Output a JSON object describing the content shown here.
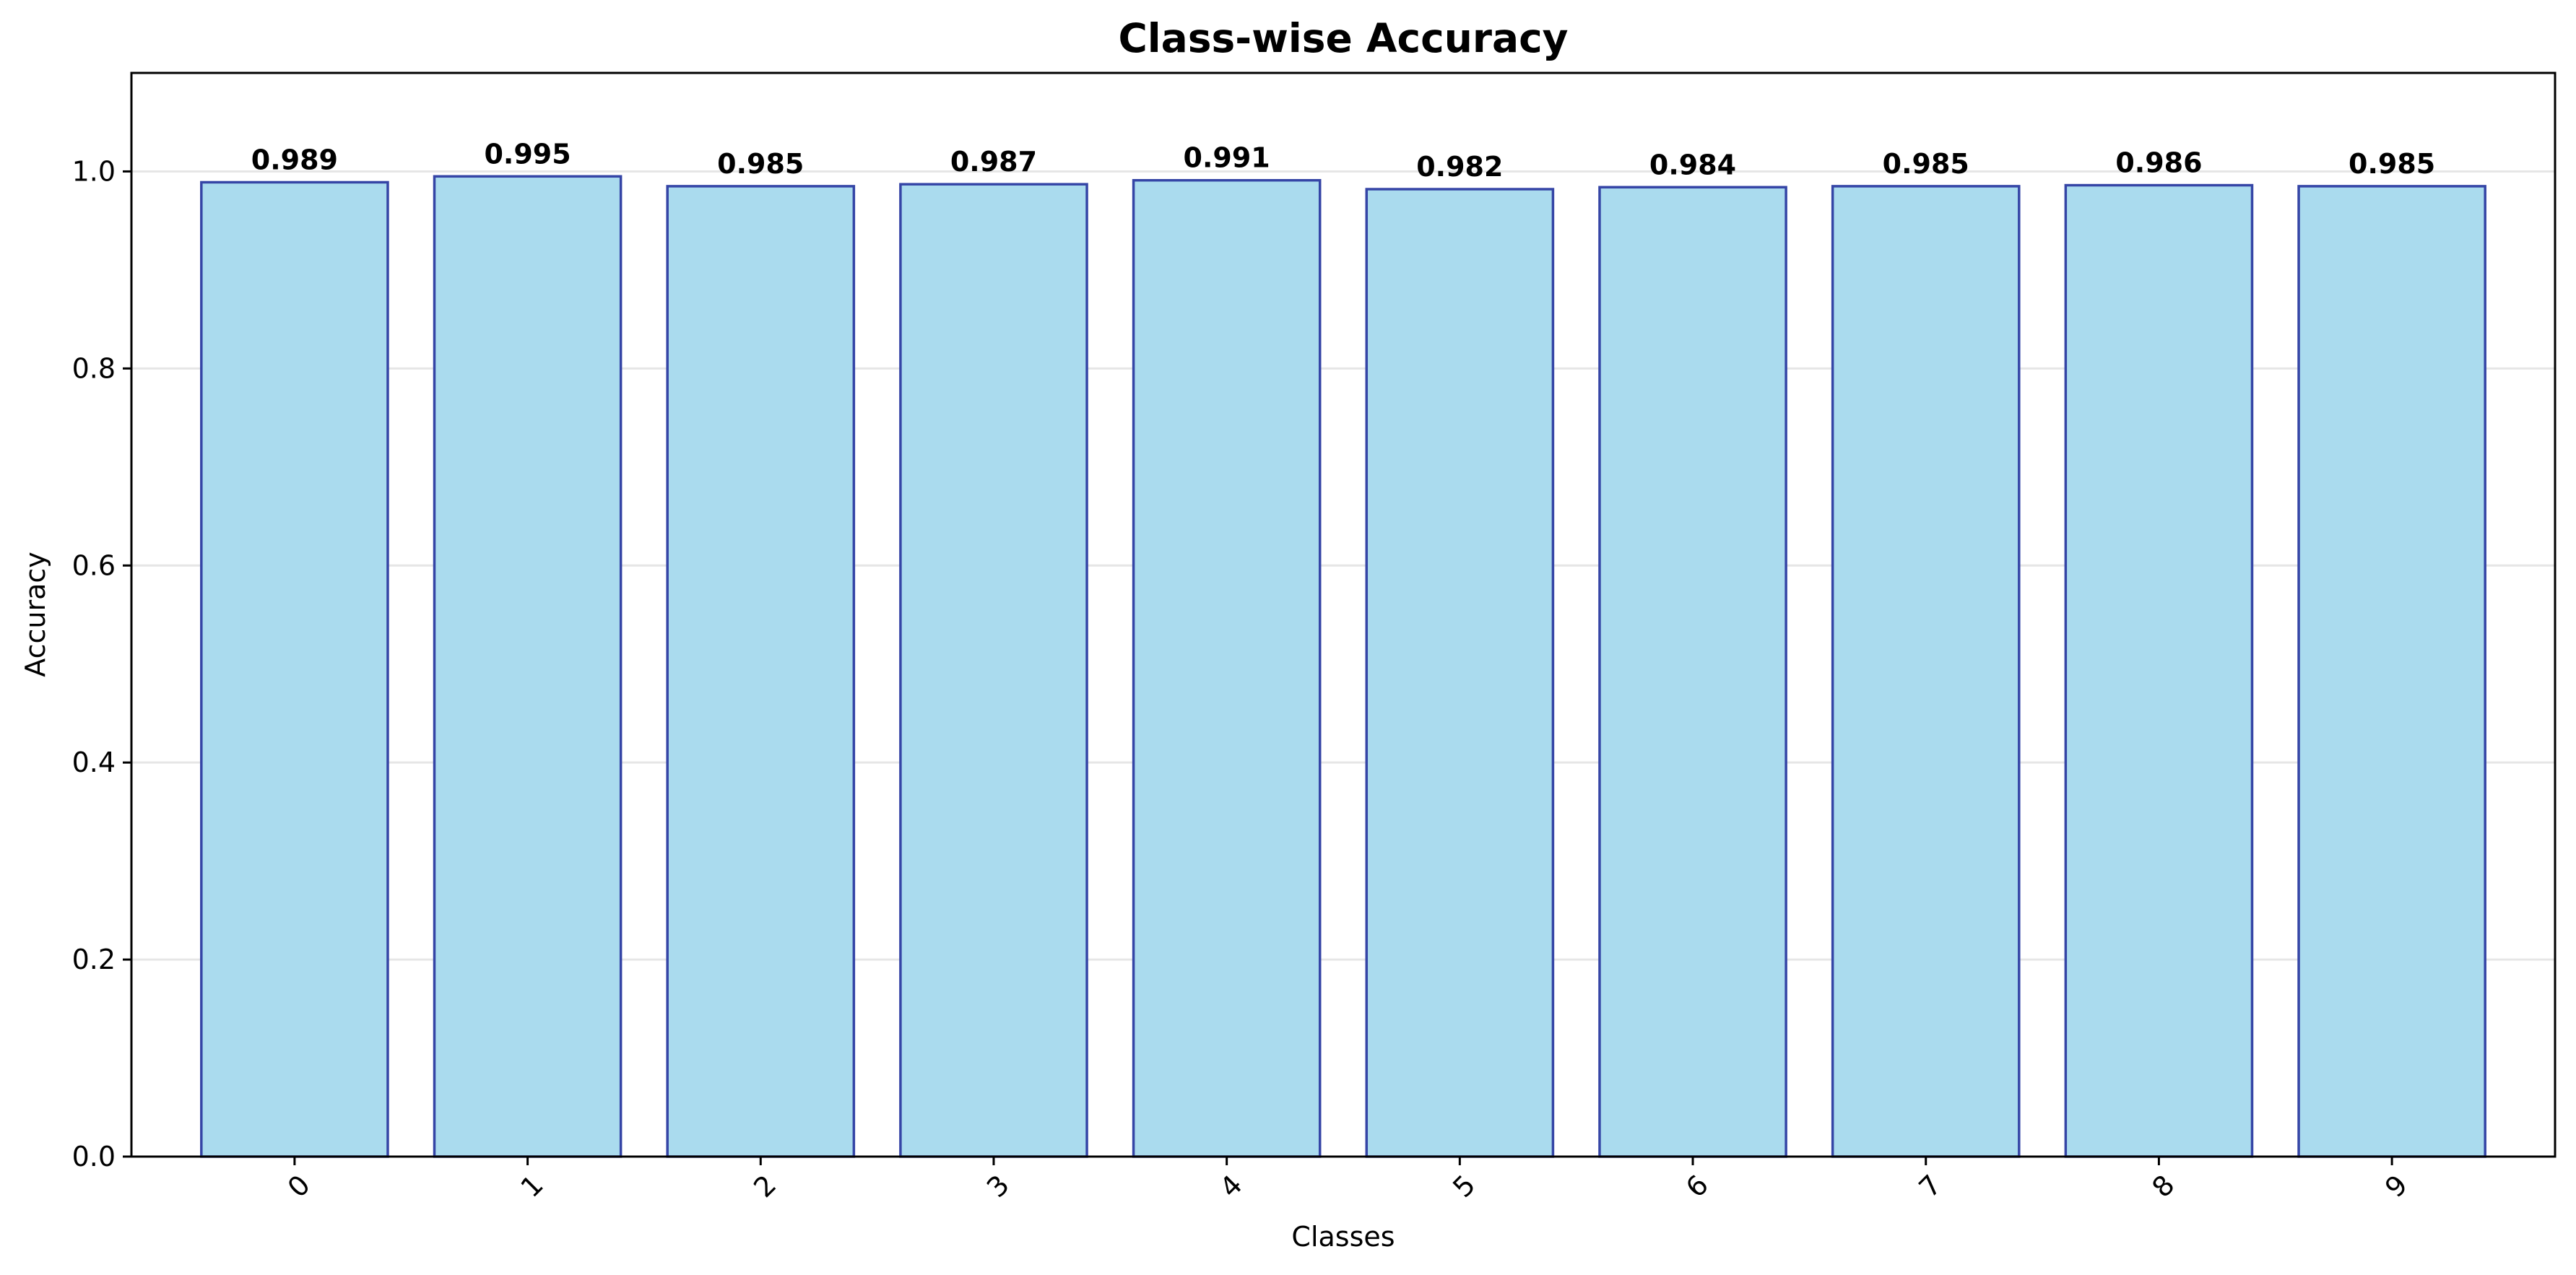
{
  "chart_data": {
    "type": "bar",
    "title": "Class-wise Accuracy",
    "xlabel": "Classes",
    "ylabel": "Accuracy",
    "categories": [
      "0",
      "1",
      "2",
      "3",
      "4",
      "5",
      "6",
      "7",
      "8",
      "9"
    ],
    "values": [
      0.989,
      0.995,
      0.985,
      0.987,
      0.991,
      0.982,
      0.984,
      0.985,
      0.986,
      0.985
    ],
    "value_labels": [
      "0.989",
      "0.995",
      "0.985",
      "0.987",
      "0.991",
      "0.982",
      "0.984",
      "0.985",
      "0.986",
      "0.985"
    ],
    "ylim": [
      0,
      1.1
    ],
    "yticks": [
      0.0,
      0.2,
      0.4,
      0.6,
      0.8,
      1.0
    ],
    "ytick_labels": [
      "0.0",
      "0.2",
      "0.4",
      "0.6",
      "0.8",
      "1.0"
    ],
    "grid": "horizontal",
    "xtick_rotation": 45,
    "colors": {
      "bar_fill": "#aadbee",
      "bar_edge": "#3545a6",
      "grid": "#e6e6e6"
    }
  }
}
